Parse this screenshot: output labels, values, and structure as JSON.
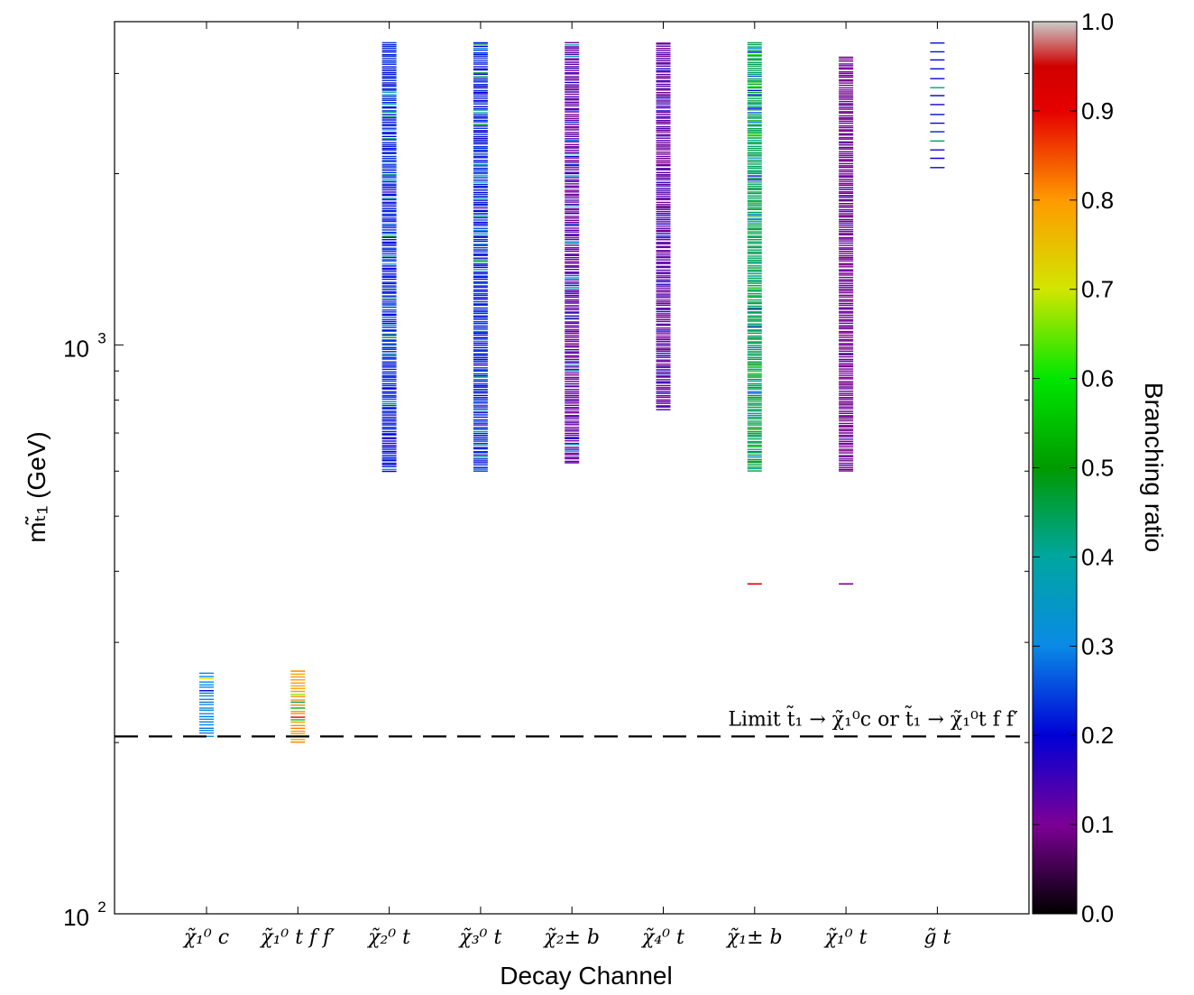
{
  "chart_data": {
    "type": "scatter",
    "xlabel": "Decay Channel",
    "ylabel": "mₜ̃₁ (GeV)",
    "y_scale": "log",
    "ylim": [
      100,
      3700
    ],
    "y_major_ticks": [
      {
        "value": 100,
        "base": "10",
        "exp": "2"
      },
      {
        "value": 1000,
        "base": "10",
        "exp": "3"
      }
    ],
    "categories": [
      "χ̃₁⁰ c",
      "χ̃₁⁰ t f f′",
      "χ̃₂⁰ t",
      "χ̃₃⁰ t",
      "χ̃₂± b",
      "χ̃₄⁰ t",
      "χ̃₁± b",
      "χ̃₁⁰ t",
      "g̃ t"
    ],
    "colorbar": {
      "label": "Branching ratio",
      "range": [
        0,
        1
      ],
      "ticks": [
        "0.0",
        "0.1",
        "0.2",
        "0.3",
        "0.4",
        "0.5",
        "0.6",
        "0.7",
        "0.8",
        "0.9",
        "1.0"
      ]
    },
    "limit_line": {
      "y": 205,
      "label": "Limit t̃₁ → χ̃₁⁰c or t̃₁ → χ̃₁⁰t f f′"
    },
    "series": [
      {
        "category_index": 0,
        "m_min": 205,
        "m_max": 265,
        "br_range": [
          0.1,
          0.95
        ],
        "main_br": 0.3,
        "extra_points": []
      },
      {
        "category_index": 1,
        "m_min": 200,
        "m_max": 267,
        "br_range": [
          0.4,
          0.95
        ],
        "main_br": 0.8,
        "extra_points": []
      },
      {
        "category_index": 2,
        "m_min": 600,
        "m_max": 3400,
        "br_range": [
          0.15,
          0.5
        ],
        "main_br": 0.22,
        "extra_points": []
      },
      {
        "category_index": 3,
        "m_min": 600,
        "m_max": 3400,
        "br_range": [
          0.15,
          0.5
        ],
        "main_br": 0.22,
        "extra_points": []
      },
      {
        "category_index": 4,
        "m_min": 620,
        "m_max": 3400,
        "br_range": [
          0.08,
          0.4
        ],
        "main_br": 0.12,
        "extra_points": []
      },
      {
        "category_index": 5,
        "m_min": 770,
        "m_max": 3400,
        "br_range": [
          0.08,
          0.2
        ],
        "main_br": 0.12,
        "extra_points": []
      },
      {
        "category_index": 6,
        "m_min": 600,
        "m_max": 3400,
        "br_range": [
          0.2,
          0.6
        ],
        "main_br": 0.45,
        "extra_points": [
          {
            "m": 380,
            "br": 0.92
          }
        ]
      },
      {
        "category_index": 7,
        "m_min": 600,
        "m_max": 3200,
        "br_range": [
          0.08,
          0.15
        ],
        "main_br": 0.1,
        "extra_points": [
          {
            "m": 380,
            "br": 0.1
          }
        ]
      },
      {
        "category_index": 8,
        "m_min": 2050,
        "m_max": 3400,
        "br_range": [
          0.1,
          0.5
        ],
        "main_br": 0.2,
        "extra_points": []
      }
    ]
  }
}
